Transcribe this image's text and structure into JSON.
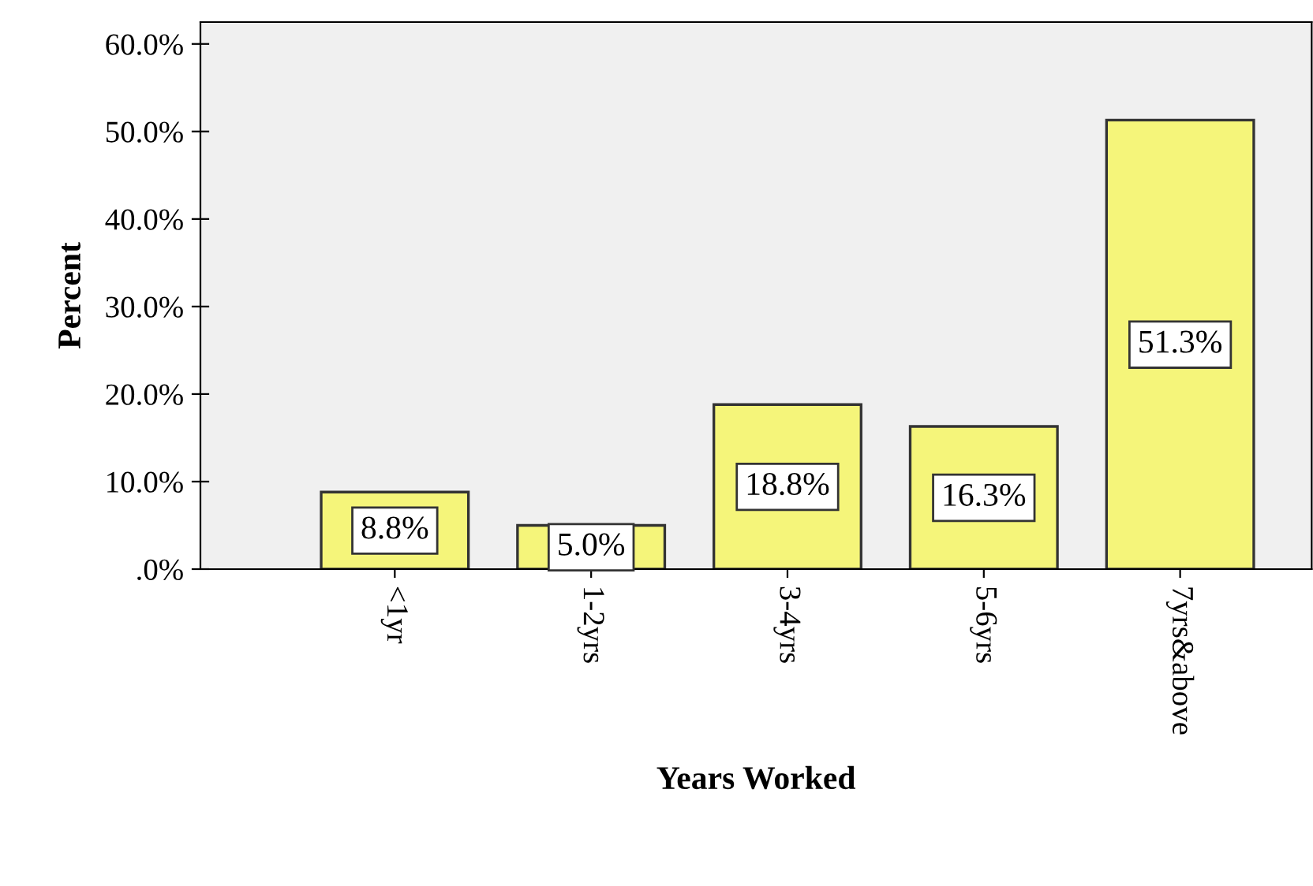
{
  "chart_data": {
    "type": "bar",
    "xlabel": "Years Worked",
    "ylabel": "Percent",
    "categories": [
      "<1yr",
      "1-2yrs",
      "3-4yrs",
      "5-6yrs",
      "7yrs&above"
    ],
    "values": [
      8.8,
      5.0,
      18.8,
      16.3,
      51.3
    ],
    "value_labels": [
      "8.8%",
      "5.0%",
      "18.8%",
      "16.3%",
      "51.3%"
    ],
    "color": "#f5f57a",
    "ylim": [
      0,
      62.5
    ],
    "yticks": [
      {
        "value": 0,
        "label": ".0%"
      },
      {
        "value": 10,
        "label": "10.0%"
      },
      {
        "value": 20,
        "label": "20.0%"
      },
      {
        "value": 30,
        "label": "30.0%"
      },
      {
        "value": 40,
        "label": "40.0%"
      },
      {
        "value": 50,
        "label": "50.0%"
      },
      {
        "value": 60,
        "label": "60.0%"
      }
    ],
    "grid": false,
    "legend": false
  }
}
